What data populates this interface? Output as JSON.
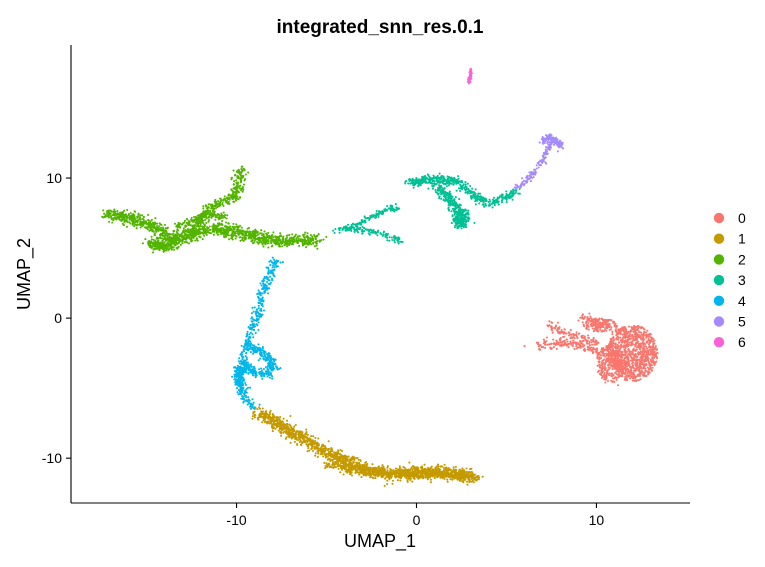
{
  "chart_data": {
    "type": "scatter",
    "title": "integrated_snn_res.0.1",
    "xlabel": "UMAP_1",
    "ylabel": "UMAP_2",
    "xlim": [
      -19.2,
      15.2
    ],
    "ylim": [
      -13.2,
      19.5
    ],
    "xticks": [
      -10,
      0,
      10
    ],
    "yticks": [
      -10,
      0,
      10
    ],
    "grid": false,
    "legend_position": "right",
    "series": [
      {
        "name": "0",
        "color": "#F8766D",
        "shape": "blob",
        "anchor_points": [
          [
            9.5,
            0.0
          ],
          [
            10.5,
            -0.3
          ],
          [
            11.5,
            -0.7
          ],
          [
            12.5,
            -1.2
          ],
          [
            13.2,
            -1.8
          ],
          [
            13.4,
            -2.5
          ],
          [
            13.0,
            -3.5
          ],
          [
            12.2,
            -4.5
          ],
          [
            11.2,
            -4.8
          ],
          [
            10.5,
            -4.6
          ],
          [
            10.2,
            -4.0
          ],
          [
            10.4,
            -3.0
          ],
          [
            9.8,
            -2.5
          ],
          [
            9.0,
            -1.8
          ],
          [
            8.0,
            -1.6
          ],
          [
            7.5,
            -0.8
          ],
          [
            7.8,
            -2.2
          ],
          [
            6.8,
            -2.0
          ],
          [
            6.0,
            -2.0
          ],
          [
            7.5,
            -0.3
          ]
        ],
        "regions": [
          {
            "cx": 12.0,
            "cy": -2.5,
            "rx": 1.4,
            "ry": 2.0,
            "count": 950
          },
          {
            "cx": 10.8,
            "cy": -3.2,
            "rx": 0.8,
            "ry": 1.4,
            "count": 260
          },
          {
            "cx": 10.2,
            "cy": -0.5,
            "rx": 0.9,
            "ry": 0.5,
            "count": 120
          }
        ],
        "paths": [
          {
            "points": [
              [
                6.9,
                -2.0
              ],
              [
                7.8,
                -1.8
              ],
              [
                8.8,
                -1.8
              ],
              [
                9.8,
                -2.2
              ],
              [
                10.8,
                -2.4
              ]
            ],
            "width": 0.35,
            "count": 160
          },
          {
            "points": [
              [
                7.4,
                -0.5
              ],
              [
                8.2,
                -1.0
              ],
              [
                9.0,
                -1.4
              ],
              [
                10.0,
                -1.8
              ]
            ],
            "width": 0.35,
            "count": 110
          },
          {
            "points": [
              [
                9.2,
                0.0
              ],
              [
                10.2,
                -0.4
              ],
              [
                11.0,
                -0.8
              ],
              [
                11.8,
                -1.2
              ]
            ],
            "width": 0.35,
            "count": 100
          }
        ]
      },
      {
        "name": "1",
        "color": "#C49A00",
        "shape": "curve",
        "paths": [
          {
            "points": [
              [
                -8.8,
                -6.7
              ],
              [
                -7.8,
                -7.5
              ],
              [
                -6.8,
                -8.3
              ],
              [
                -5.8,
                -9.0
              ],
              [
                -4.8,
                -9.7
              ],
              [
                -3.8,
                -10.3
              ],
              [
                -2.8,
                -10.8
              ],
              [
                -1.8,
                -11.1
              ],
              [
                -0.8,
                -11.1
              ],
              [
                0.2,
                -11.0
              ],
              [
                1.2,
                -11.0
              ],
              [
                2.2,
                -11.1
              ],
              [
                3.3,
                -11.4
              ]
            ],
            "width": 0.5,
            "count": 1500
          },
          {
            "points": [
              [
                -5.0,
                -10.4
              ],
              [
                -3.0,
                -10.9
              ],
              [
                -1.0,
                -11.2
              ],
              [
                1.0,
                -11.1
              ],
              [
                3.0,
                -11.3
              ]
            ],
            "width": 0.35,
            "count": 500
          }
        ]
      },
      {
        "name": "2",
        "color": "#53B400",
        "shape": "curve",
        "paths": [
          {
            "points": [
              [
                -17.2,
                7.4
              ],
              [
                -16.0,
                7.2
              ],
              [
                -14.8,
                6.7
              ],
              [
                -13.8,
                5.7
              ],
              [
                -12.8,
                5.8
              ],
              [
                -11.8,
                6.3
              ],
              [
                -10.8,
                6.4
              ],
              [
                -9.8,
                6.0
              ],
              [
                -8.8,
                5.8
              ],
              [
                -7.8,
                5.5
              ],
              [
                -6.8,
                5.5
              ],
              [
                -5.5,
                5.6
              ]
            ],
            "width": 0.5,
            "count": 1300
          },
          {
            "points": [
              [
                -14.8,
                5.3
              ],
              [
                -14.0,
                5.1
              ],
              [
                -13.2,
                5.5
              ]
            ],
            "width": 0.45,
            "count": 250
          },
          {
            "points": [
              [
                -12.5,
                6.1
              ],
              [
                -12.0,
                7.0
              ],
              [
                -11.5,
                7.9
              ],
              [
                -10.8,
                8.3
              ],
              [
                -10.2,
                8.5
              ],
              [
                -9.9,
                9.5
              ],
              [
                -9.8,
                10.8
              ]
            ],
            "width": 0.35,
            "count": 360
          },
          {
            "points": [
              [
                -13.5,
                6.4
              ],
              [
                -12.6,
                6.9
              ],
              [
                -11.8,
                7.3
              ],
              [
                -10.6,
                7.3
              ]
            ],
            "width": 0.3,
            "count": 140
          }
        ]
      },
      {
        "name": "3",
        "color": "#00C094",
        "shape": "curve",
        "paths": [
          {
            "points": [
              [
                -0.4,
                9.6
              ],
              [
                0.5,
                9.9
              ],
              [
                1.5,
                9.8
              ],
              [
                2.3,
                9.8
              ]
            ],
            "width": 0.35,
            "count": 260
          },
          {
            "points": [
              [
                1.2,
                9.5
              ],
              [
                1.7,
                8.7
              ],
              [
                2.2,
                7.9
              ],
              [
                2.4,
                7.1
              ],
              [
                2.5,
                6.6
              ]
            ],
            "width": 0.45,
            "count": 300
          },
          {
            "points": [
              [
                2.2,
                9.6
              ],
              [
                2.8,
                9.2
              ],
              [
                3.3,
                8.6
              ],
              [
                4.0,
                8.2
              ],
              [
                5.0,
                8.6
              ],
              [
                5.7,
                9.3
              ]
            ],
            "width": 0.35,
            "count": 230
          },
          {
            "points": [
              [
                2.5,
                6.7
              ],
              [
                2.6,
                7.6
              ]
            ],
            "width": 0.45,
            "count": 90
          },
          {
            "points": [
              [
                -4.0,
                6.4
              ],
              [
                -3.2,
                6.7
              ],
              [
                -2.4,
                7.3
              ],
              [
                -1.7,
                7.7
              ],
              [
                -1.0,
                7.9
              ]
            ],
            "width": 0.25,
            "count": 130
          },
          {
            "points": [
              [
                -4.6,
                6.3
              ],
              [
                -3.5,
                6.3
              ],
              [
                -2.5,
                6.2
              ],
              [
                -1.5,
                5.8
              ],
              [
                -0.8,
                5.5
              ]
            ],
            "width": 0.25,
            "count": 120
          }
        ]
      },
      {
        "name": "4",
        "color": "#00B6EB",
        "shape": "curve",
        "paths": [
          {
            "points": [
              [
                -7.8,
                4.3
              ],
              [
                -8.1,
                3.3
              ],
              [
                -8.4,
                2.4
              ],
              [
                -8.6,
                1.4
              ],
              [
                -8.8,
                0.4
              ],
              [
                -9.1,
                -0.8
              ],
              [
                -9.4,
                -1.8
              ],
              [
                -9.6,
                -2.8
              ],
              [
                -9.8,
                -3.8
              ],
              [
                -9.9,
                -4.8
              ],
              [
                -9.5,
                -5.7
              ],
              [
                -9.0,
                -6.5
              ]
            ],
            "width": 0.3,
            "count": 400
          },
          {
            "points": [
              [
                -9.4,
                -2.0
              ],
              [
                -8.8,
                -2.3
              ],
              [
                -8.3,
                -2.8
              ],
              [
                -7.9,
                -3.4
              ],
              [
                -8.4,
                -4.0
              ],
              [
                -9.0,
                -3.9
              ],
              [
                -9.5,
                -3.3
              ]
            ],
            "width": 0.35,
            "count": 320
          },
          {
            "points": [
              [
                -9.8,
                -3.5
              ],
              [
                -9.9,
                -4.5
              ],
              [
                -9.6,
                -5.0
              ]
            ],
            "width": 0.35,
            "count": 150
          }
        ]
      },
      {
        "name": "5",
        "color": "#A58AFF",
        "shape": "curve",
        "paths": [
          {
            "points": [
              [
                5.5,
                9.3
              ],
              [
                6.1,
                9.8
              ],
              [
                6.6,
                10.5
              ],
              [
                7.0,
                11.3
              ],
              [
                7.3,
                12.1
              ],
              [
                7.6,
                12.8
              ]
            ],
            "width": 0.2,
            "count": 140
          },
          {
            "points": [
              [
                7.0,
                12.6
              ],
              [
                7.4,
                13.0
              ],
              [
                7.8,
                12.6
              ],
              [
                8.0,
                12.2
              ]
            ],
            "width": 0.25,
            "count": 110
          }
        ]
      },
      {
        "name": "6",
        "color": "#FB61D7",
        "shape": "curve",
        "paths": [
          {
            "points": [
              [
                2.9,
                16.8
              ],
              [
                3.0,
                17.3
              ],
              [
                3.0,
                17.8
              ]
            ],
            "width": 0.12,
            "count": 45
          }
        ]
      }
    ]
  }
}
